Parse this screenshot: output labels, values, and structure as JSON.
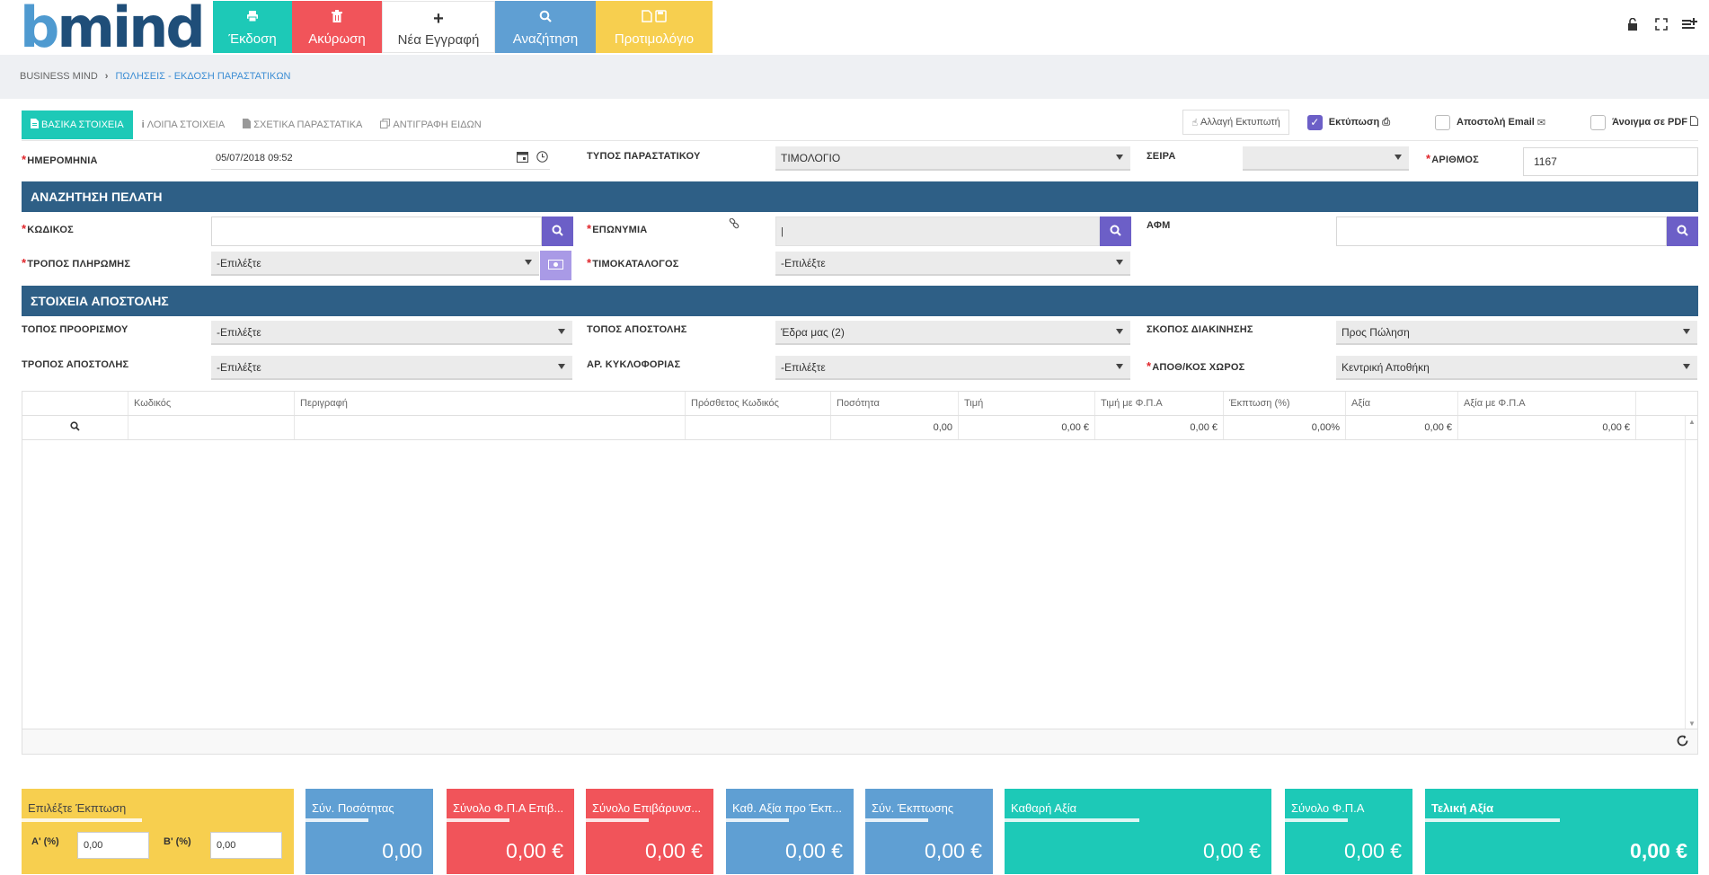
{
  "app": {
    "logo_b": "b",
    "logo_rest": "mind"
  },
  "toolbar": {
    "print": "Έκδοση",
    "cancel": "Ακύρωση",
    "new": "Νέα Εγγραφή",
    "search": "Αναζήτηση",
    "pref": "Προτιμολόγιο",
    "new_icon_glyph": "+"
  },
  "breadcrumb": {
    "root": "BUSINESS MIND",
    "sep": "›",
    "current": "ΠΩΛΗΣΕΙΣ - ΕΚΔΟΣΗ ΠΑΡΑΣΤΑΤΙΚΩΝ"
  },
  "tabs": [
    {
      "label": "ΒΑΣΙΚΑ ΣΤΟΙΧΕΙΑ",
      "active": true
    },
    {
      "label": "ΛΟΙΠΑ ΣΤΟΙΧΕΙΑ"
    },
    {
      "label": "ΣΧΕΤΙΚΑ ΠΑΡΑΣΤΑΤΙΚΑ"
    },
    {
      "label": "ΑΝΤΙΓΡΑΦΗ ΕΙΔΩΝ"
    }
  ],
  "print_options": {
    "change_printer": "Αλλαγή Εκτυπωτή",
    "print": "Εκτύπωση",
    "print_checked": true,
    "email": "Αποστολή Email",
    "email_checked": false,
    "pdf": "Άνοιγμα σε PDF",
    "pdf_checked": false
  },
  "header": {
    "date_label": "ΗΜΕΡΟΜΗΝΙΑ",
    "date_value": "05/07/2018 09:52",
    "doc_type_label": "ΤΥΠΟΣ ΠΑΡΑΣΤΑΤΙΚΟΥ",
    "doc_type_value": "ΤΙΜΟΛΟΓΙΟ",
    "series_label": "ΣΕΙΡΑ",
    "series_value": "",
    "number_label": "ΑΡΙΘΜΟΣ",
    "number_value": "1167"
  },
  "customer": {
    "section": "ΑΝΑΖΗΤΗΣΗ ΠΕΛΑΤΗ",
    "code_label": "ΚΩΔΙΚΟΣ",
    "code_value": "",
    "name_label": "ΕΠΩΝΥΜΙΑ",
    "name_value": "|",
    "afm_label": "ΑΦΜ",
    "afm_value": "",
    "payment_label": "ΤΡΟΠΟΣ ΠΛΗΡΩΜΗΣ",
    "payment_value": "-Επιλέξτε",
    "pricelist_label": "ΤΙΜΟΚΑΤΑΛΟΓΟΣ",
    "pricelist_value": "-Επιλέξτε"
  },
  "shipping": {
    "section": "ΣΤΟΙΧΕΙΑ ΑΠΟΣΤΟΛΗΣ",
    "dest_label": "ΤΟΠΟΣ ΠΡΟΟΡΙΣΜΟΥ",
    "dest_value": "-Επιλέξτε",
    "origin_label": "ΤΟΠΟΣ ΑΠΟΣΤΟΛΗΣ",
    "origin_value": "Έδρα μας (2)",
    "purpose_label": "ΣΚΟΠΟΣ ΔΙΑΚΙΝΗΣΗΣ",
    "purpose_value": "Προς Πώληση",
    "method_label": "ΤΡΟΠΟΣ ΑΠΟΣΤΟΛΗΣ",
    "method_value": "-Επιλέξτε",
    "plate_label": "ΑΡ. ΚΥΚΛΟΦΟΡΙΑΣ",
    "plate_value": "-Επιλέξτε",
    "warehouse_label": "ΑΠΟΘ/ΚΟΣ ΧΩΡΟΣ",
    "warehouse_value": "Κεντρική Αποθήκη"
  },
  "grid": {
    "columns": [
      "",
      "Κωδικός",
      "Περιγραφή",
      "Πρόσθετος Κωδικός",
      "Ποσότητα",
      "Τιμή",
      "Τιμή με Φ.Π.Α",
      "Έκπτωση (%)",
      "Αξία",
      "Αξία με Φ.Π.Α",
      ""
    ],
    "row": [
      "",
      "",
      "",
      "",
      "0,00",
      "0,00 €",
      "0,00 €",
      "0,00%",
      "0,00 €",
      "0,00 €",
      ""
    ]
  },
  "totals": {
    "discount_title": "Επιλέξτε Έκπτωση",
    "disc_a_label": "Α' (%)",
    "disc_a_value": "0,00",
    "disc_b_label": "Β' (%)",
    "disc_b_value": "0,00",
    "boxes": [
      {
        "label": "Σύν. Ποσότητας",
        "value": "0,00"
      },
      {
        "label": "Σύνολο Φ.Π.Α Επιβ...",
        "value": "0,00 €"
      },
      {
        "label": "Σύνολο Επιβάρυνσ...",
        "value": "0,00 €"
      },
      {
        "label": "Καθ. Αξία προ Έκπ...",
        "value": "0,00 €"
      },
      {
        "label": "Σύν. Έκπτωσης",
        "value": "0,00 €"
      },
      {
        "label": "Καθαρή Αξία",
        "value": "0,00 €"
      },
      {
        "label": "Σύνολο Φ.Π.Α",
        "value": "0,00 €"
      },
      {
        "label": "Τελική Αξία",
        "value": "0,00 €"
      }
    ]
  },
  "colors": {
    "teal": "#1dc9b7",
    "red": "#f1545a",
    "blue": "#5f9fd3",
    "yellow": "#f7cf4f",
    "purple": "#6c5fc7",
    "section": "#2e5f86",
    "logo_light": "#4f9ad0",
    "logo_dark": "#1f4e79"
  },
  "icons": {
    "toolbar": [
      "printer-icon",
      "trash-icon",
      "plus-icon",
      "search-icon",
      "document-save-icon"
    ],
    "top_right": [
      "unlock-icon",
      "fullscreen-icon",
      "menu-add-icon"
    ]
  }
}
